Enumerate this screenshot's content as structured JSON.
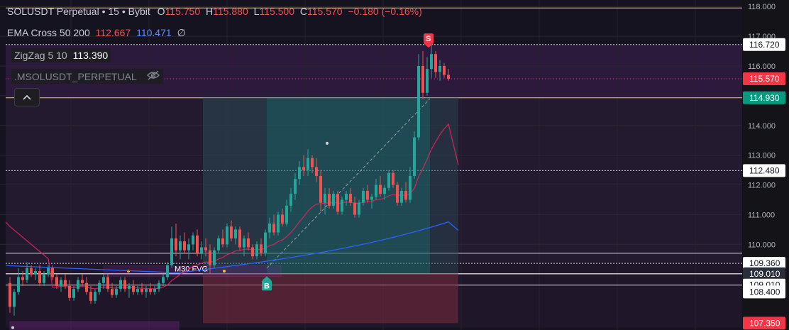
{
  "header": {
    "symbol": "SOLUSDT Perpetual",
    "interval": "15",
    "exchange": "Bybit",
    "o_label": "O",
    "o": "115.750",
    "h_label": "H",
    "h": "115.880",
    "l_label": "L",
    "l": "115.500",
    "c_label": "C",
    "c": "115.570",
    "change": "−0.180 (−0.16%)"
  },
  "indicators": {
    "ema_name": "EMA Cross 50 200",
    "ema50": "112.667",
    "ema200": "110.471",
    "ema_extra": "∅",
    "zigzag_name": "ZigZag 5 10",
    "zigzag_value": "113.390",
    "ms_name": ".MSOLUSDT_PERPETUAL"
  },
  "icons": {
    "hide": "eye-off-icon",
    "collapse": "chevron-up-icon"
  },
  "colors": {
    "up": "#26a69a",
    "down": "#ef5350",
    "ema50": "#c2185b",
    "ema200": "#2962ff",
    "current_price": "#f23645",
    "entry": "#089981",
    "fvg": "#9c27b0"
  },
  "chart_data": {
    "type": "candlestick",
    "ylim": [
      107.0,
      118.1
    ],
    "y_ticks": [
      "118.000",
      "117.000",
      "116.000",
      "115.000",
      "114.000",
      "113.000",
      "112.000",
      "111.000",
      "110.000"
    ],
    "price_labels": [
      {
        "value": "116.720",
        "price": 116.72,
        "style": "white"
      },
      {
        "value": "115.570",
        "price": 115.57,
        "style": "red"
      },
      {
        "value": "114.930",
        "price": 114.93,
        "style": "green"
      },
      {
        "value": "112.480",
        "price": 112.48,
        "style": "white"
      },
      {
        "value": "109.360",
        "price": 109.36,
        "style": "white"
      },
      {
        "value": "109.010",
        "price": 109.01,
        "style": "dark"
      },
      {
        "value": "109.010",
        "price": 108.63,
        "style": "white"
      },
      {
        "value": "108.400",
        "price": 108.4,
        "style": "white"
      },
      {
        "value": "107.350",
        "price": 107.35,
        "style": "red"
      }
    ],
    "annotations": {
      "fvg_label": "M30 FVG",
      "buy_marker": "B",
      "sell_marker": "S"
    },
    "ohlc": [
      [
        108.7,
        108.9,
        107.7,
        107.9
      ],
      [
        107.9,
        108.5,
        107.6,
        108.4
      ],
      [
        108.4,
        109.2,
        108.3,
        108.9
      ],
      [
        108.9,
        109.1,
        108.6,
        108.8
      ],
      [
        108.8,
        109.4,
        108.7,
        109.2
      ],
      [
        109.2,
        109.3,
        108.9,
        109.0
      ],
      [
        109.0,
        109.2,
        108.8,
        109.1
      ],
      [
        109.1,
        109.3,
        108.6,
        108.7
      ],
      [
        108.7,
        109.1,
        108.6,
        109.0
      ],
      [
        109.0,
        109.3,
        108.9,
        109.2
      ],
      [
        109.2,
        109.3,
        108.8,
        108.9
      ],
      [
        108.9,
        109.0,
        108.5,
        108.6
      ],
      [
        108.6,
        108.9,
        108.4,
        108.8
      ],
      [
        108.8,
        109.0,
        108.5,
        108.6
      ],
      [
        108.6,
        108.8,
        108.1,
        108.2
      ],
      [
        108.2,
        108.6,
        108.1,
        108.5
      ],
      [
        108.5,
        108.9,
        108.4,
        108.8
      ],
      [
        108.8,
        109.0,
        108.6,
        108.7
      ],
      [
        108.7,
        108.9,
        108.3,
        108.4
      ],
      [
        108.4,
        108.6,
        108.0,
        108.1
      ],
      [
        108.1,
        108.5,
        108.0,
        108.4
      ],
      [
        108.4,
        108.8,
        108.3,
        108.7
      ],
      [
        108.7,
        109.0,
        108.5,
        108.9
      ],
      [
        108.9,
        109.0,
        108.4,
        108.5
      ],
      [
        108.5,
        108.7,
        108.2,
        108.3
      ],
      [
        108.3,
        108.6,
        108.2,
        108.5
      ],
      [
        108.5,
        108.9,
        108.4,
        108.8
      ],
      [
        108.8,
        108.9,
        108.4,
        108.5
      ],
      [
        108.5,
        108.7,
        108.2,
        108.6
      ],
      [
        108.6,
        108.8,
        108.3,
        108.4
      ],
      [
        108.4,
        108.6,
        108.3,
        108.5
      ],
      [
        108.5,
        108.7,
        108.3,
        108.4
      ],
      [
        108.4,
        108.6,
        108.2,
        108.5
      ],
      [
        108.5,
        108.7,
        108.3,
        108.4
      ],
      [
        108.4,
        108.6,
        108.3,
        108.5
      ],
      [
        108.5,
        108.8,
        108.4,
        108.7
      ],
      [
        108.7,
        109.0,
        108.6,
        108.9
      ],
      [
        108.9,
        109.4,
        108.8,
        109.3
      ],
      [
        109.3,
        110.6,
        109.2,
        110.2
      ],
      [
        110.2,
        110.7,
        109.6,
        109.8
      ],
      [
        109.8,
        110.3,
        109.5,
        110.1
      ],
      [
        110.1,
        110.4,
        109.7,
        109.8
      ],
      [
        109.8,
        110.2,
        109.5,
        110.0
      ],
      [
        110.0,
        110.4,
        109.8,
        110.3
      ],
      [
        110.3,
        110.5,
        109.6,
        109.7
      ],
      [
        109.7,
        110.1,
        109.5,
        109.9
      ],
      [
        109.9,
        110.2,
        109.6,
        109.8
      ],
      [
        109.8,
        110.0,
        109.0,
        109.3
      ],
      [
        109.3,
        109.9,
        109.2,
        109.8
      ],
      [
        109.8,
        110.3,
        109.7,
        110.2
      ],
      [
        110.2,
        110.5,
        109.9,
        110.0
      ],
      [
        110.0,
        110.7,
        109.9,
        110.6
      ],
      [
        110.6,
        110.8,
        110.1,
        110.2
      ],
      [
        110.2,
        110.6,
        110.0,
        110.5
      ],
      [
        110.5,
        110.6,
        109.8,
        109.9
      ],
      [
        109.9,
        110.3,
        109.6,
        110.2
      ],
      [
        110.2,
        110.4,
        109.8,
        109.9
      ],
      [
        109.9,
        110.0,
        109.5,
        109.6
      ],
      [
        109.6,
        110.1,
        109.5,
        110.0
      ],
      [
        110.0,
        110.2,
        109.6,
        109.7
      ],
      [
        109.7,
        110.5,
        109.6,
        110.4
      ],
      [
        110.4,
        110.9,
        110.2,
        110.7
      ],
      [
        110.7,
        111.0,
        110.3,
        110.4
      ],
      [
        110.4,
        111.1,
        110.3,
        111.0
      ],
      [
        111.0,
        111.2,
        110.6,
        110.7
      ],
      [
        110.7,
        111.5,
        110.6,
        111.3
      ],
      [
        111.3,
        111.9,
        111.1,
        111.7
      ],
      [
        111.7,
        112.4,
        111.5,
        112.2
      ],
      [
        112.2,
        112.8,
        112.0,
        112.6
      ],
      [
        112.6,
        113.0,
        112.3,
        112.5
      ],
      [
        112.5,
        113.2,
        112.3,
        112.9
      ],
      [
        112.9,
        113.0,
        112.4,
        112.6
      ],
      [
        112.6,
        112.9,
        112.1,
        112.3
      ],
      [
        112.3,
        112.5,
        111.1,
        111.4
      ],
      [
        111.4,
        111.9,
        111.0,
        111.7
      ],
      [
        111.7,
        111.9,
        111.2,
        111.3
      ],
      [
        111.3,
        111.8,
        111.2,
        111.7
      ],
      [
        111.7,
        111.8,
        111.0,
        111.1
      ],
      [
        111.1,
        111.6,
        111.0,
        111.5
      ],
      [
        111.5,
        111.8,
        111.3,
        111.7
      ],
      [
        111.7,
        111.9,
        111.3,
        111.4
      ],
      [
        111.4,
        111.6,
        110.9,
        111.0
      ],
      [
        111.0,
        111.5,
        110.9,
        111.4
      ],
      [
        111.4,
        111.9,
        111.3,
        111.8
      ],
      [
        111.8,
        112.0,
        111.4,
        111.5
      ],
      [
        111.5,
        111.7,
        111.2,
        111.6
      ],
      [
        111.6,
        112.2,
        111.5,
        112.0
      ],
      [
        112.0,
        112.3,
        111.6,
        111.7
      ],
      [
        111.7,
        112.0,
        111.5,
        111.9
      ],
      [
        111.9,
        112.5,
        111.8,
        112.4
      ],
      [
        112.4,
        112.5,
        111.9,
        112.0
      ],
      [
        112.0,
        112.1,
        111.3,
        111.4
      ],
      [
        111.4,
        111.9,
        111.3,
        111.8
      ],
      [
        111.8,
        112.1,
        111.4,
        111.5
      ],
      [
        111.5,
        112.6,
        111.4,
        112.3
      ],
      [
        112.3,
        113.8,
        112.2,
        113.6
      ],
      [
        113.6,
        116.4,
        113.5,
        116.0
      ],
      [
        116.0,
        116.5,
        114.9,
        115.1
      ],
      [
        115.1,
        116.3,
        115.0,
        115.9
      ],
      [
        115.9,
        116.7,
        115.6,
        116.4
      ],
      [
        116.4,
        116.5,
        115.6,
        115.8
      ],
      [
        115.8,
        116.2,
        115.5,
        116.0
      ],
      [
        116.0,
        116.1,
        115.6,
        115.7
      ],
      [
        115.7,
        115.9,
        115.5,
        115.57
      ]
    ]
  }
}
